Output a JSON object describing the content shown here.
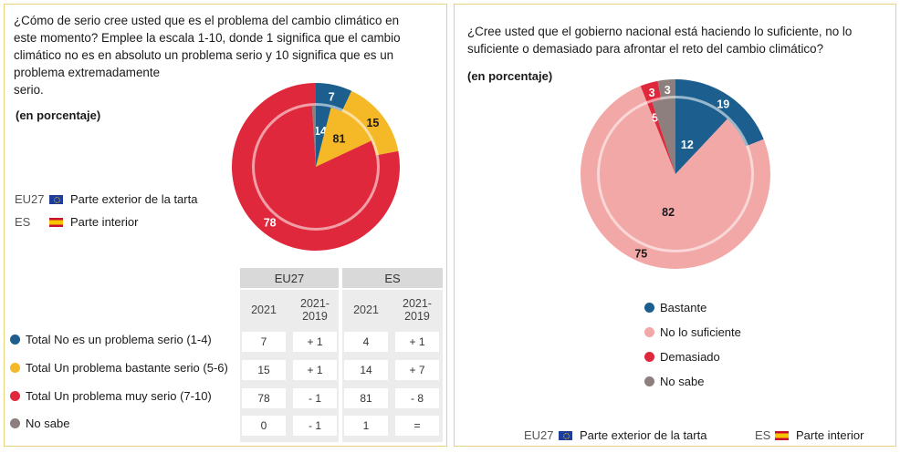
{
  "flag_legend": {
    "eu_code": "EU27",
    "es_code": "ES",
    "outer_label": "Parte exterior de la tarta",
    "inner_label": "Parte interior"
  },
  "chart_data": [
    {
      "type": "pie",
      "title": "¿Cómo de serio cree usted que es el problema del cambio climático en este momento? Emplee la escala 1-10, donde 1 significa que el cambio climático no es en absoluto un problema serio y 10 significa que es un problema extremadamente serio.",
      "title_lines": [
        "¿Cómo de serio cree usted que es el problema del cambio climático en",
        "este momento? Emplee la escala 1-10, donde 1 significa que el cambio",
        "climático no es en absoluto un problema serio y 10 significa que es un",
        "problema extremadamente",
        "serio."
      ],
      "unit_note": "(en porcentaje)",
      "categories": [
        "Total No es un problema serio (1-4)",
        "Total Un problema bastante serio (5-6)",
        "Total Un problema muy serio (7-10)",
        "No sabe"
      ],
      "colors": [
        "#1c5f8f",
        "#f5b928",
        "#e0283c",
        "#8c7f7d"
      ],
      "series": [
        {
          "name": "EU27",
          "ring": "outer",
          "values": [
            7,
            15,
            78,
            0
          ]
        },
        {
          "name": "ES",
          "ring": "inner",
          "values": [
            4,
            14,
            81,
            1
          ]
        }
      ],
      "slice_labels": {
        "outer": [
          "7",
          "15",
          "78"
        ],
        "inner": [
          "14",
          "81"
        ]
      },
      "table": {
        "groups": [
          "EU27",
          "ES"
        ],
        "subheaders": [
          "2021",
          "2021-\n2019"
        ],
        "rows": [
          [
            "7",
            "+ 1",
            "4",
            "+ 1"
          ],
          [
            "15",
            "+ 1",
            "14",
            "+ 7"
          ],
          [
            "78",
            "- 1",
            "81",
            "- 8"
          ],
          [
            "0",
            "- 1",
            "1",
            "="
          ]
        ]
      }
    },
    {
      "type": "pie",
      "title": "¿Cree usted que el gobierno nacional está haciendo lo suficiente, no lo suficiente o demasiado para afrontar el reto del cambio climático?",
      "title_lines": [
        "¿Cree usted que el gobierno nacional está haciendo lo suficiente, no lo",
        "suficiente o demasiado para afrontar el reto del cambio climático?"
      ],
      "unit_note": "(en porcentaje)",
      "categories": [
        "Bastante",
        "No lo suficiente",
        "Demasiado",
        "No sabe"
      ],
      "colors": [
        "#1c5f8f",
        "#f2a8a6",
        "#e0283c",
        "#8c7f7d"
      ],
      "series": [
        {
          "name": "EU27",
          "ring": "outer",
          "values": [
            19,
            75,
            3,
            3
          ]
        },
        {
          "name": "ES",
          "ring": "inner",
          "values": [
            12,
            82,
            1,
            5
          ]
        }
      ],
      "slice_labels": {
        "outer": [
          "19",
          "75",
          "3",
          "3"
        ],
        "inner": [
          "12",
          "82",
          "5"
        ]
      }
    }
  ]
}
